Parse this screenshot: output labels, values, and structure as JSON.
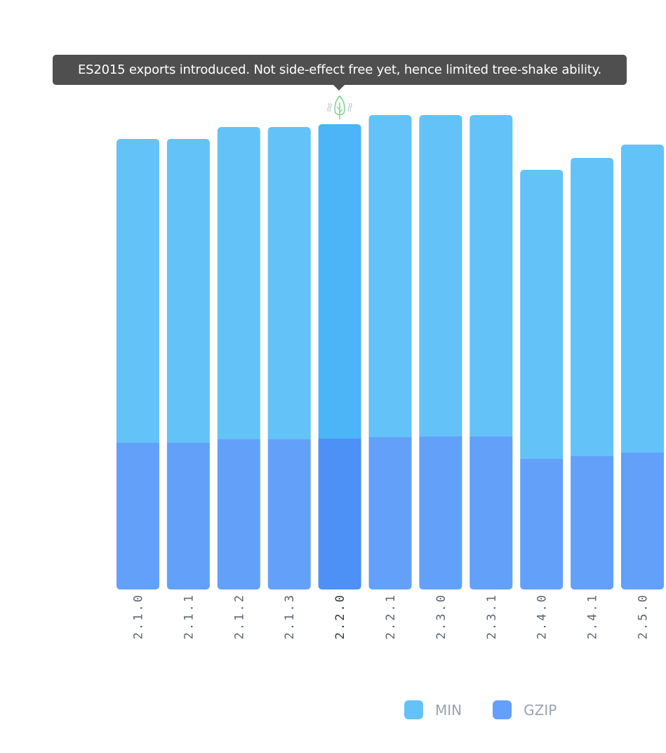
{
  "tooltip": {
    "text": "ES2015 exports introduced. Not side-effect free yet, hence limited tree-shake ability."
  },
  "icons": {
    "tree_shake": "leaf-icon"
  },
  "colors": {
    "min": "#63c2f7",
    "gzip": "#63a0f9",
    "min_highlight": "#4bb5f8",
    "gzip_highlight": "#4d91f7",
    "tick": "#5e6771",
    "tick_highlight": "#333a42",
    "tooltip_bg": "#4f4f4f",
    "leaf": "#7ed88f"
  },
  "chart_data": {
    "type": "bar",
    "stacked": true,
    "categories": [
      "2.1.0",
      "2.1.1",
      "2.1.2",
      "2.1.3",
      "2.2.0",
      "2.2.1",
      "2.3.0",
      "2.3.1",
      "2.4.0",
      "2.4.1",
      "2.5.0"
    ],
    "highlighted": "2.2.0",
    "series": [
      {
        "name": "GZIP",
        "values": [
          209,
          209,
          214,
          214,
          215,
          217,
          218,
          218,
          186,
          190,
          195
        ]
      },
      {
        "name": "MIN",
        "values": [
          433,
          433,
          445,
          445,
          448,
          459,
          458,
          458,
          412,
          425,
          439
        ]
      }
    ],
    "ylim": [
      0,
      700
    ],
    "grid": false,
    "legend": "bottom-right"
  },
  "legend": {
    "items": [
      {
        "label": "MIN"
      },
      {
        "label": "GZIP"
      }
    ]
  }
}
